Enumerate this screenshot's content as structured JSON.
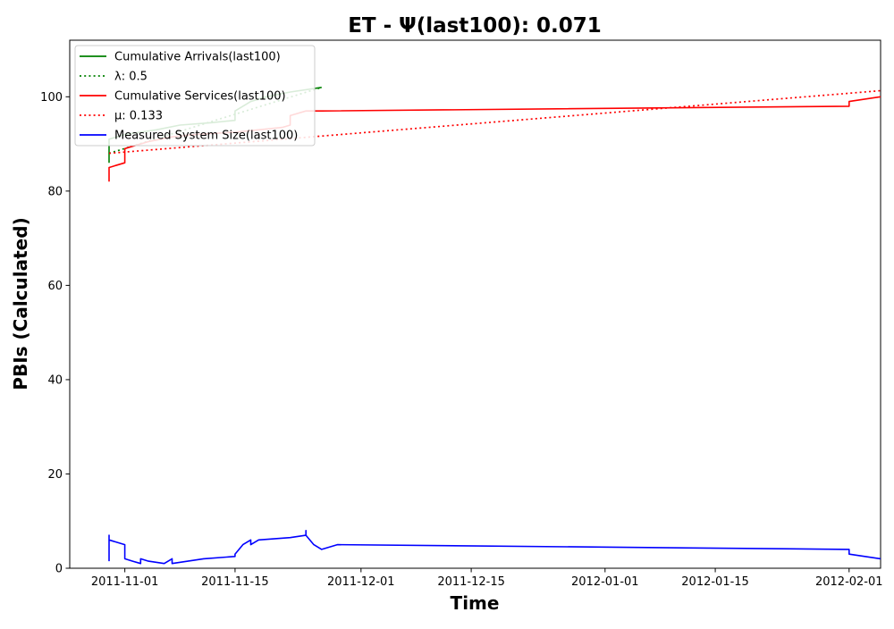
{
  "chart_data": {
    "type": "line",
    "title": "ET -  Ψ(last100): 0.071",
    "xlabel": "Time",
    "ylabel": "PBIs (Calculated)",
    "ylim": [
      0,
      112
    ],
    "yticks": [
      0,
      20,
      40,
      60,
      80,
      100
    ],
    "xlim": [
      "2011-10-25",
      "2012-02-05"
    ],
    "xticks": [
      "2011-11-01",
      "2011-11-15",
      "2011-12-01",
      "2011-12-15",
      "2012-01-01",
      "2012-01-15",
      "2012-02-01"
    ],
    "legend_position": "top-left",
    "grid": false,
    "series": [
      {
        "name": "Cumulative Arrivals(last100)",
        "style": "solid",
        "color": "#008000",
        "points": [
          [
            "2011-10-30",
            86
          ],
          [
            "2011-10-30",
            89
          ],
          [
            "2011-10-30",
            91
          ],
          [
            "2011-11-01",
            92
          ],
          [
            "2011-11-05",
            93
          ],
          [
            "2011-11-08",
            94
          ],
          [
            "2011-11-12",
            94.5
          ],
          [
            "2011-11-15",
            95
          ],
          [
            "2011-11-15",
            97
          ],
          [
            "2011-11-16",
            98
          ],
          [
            "2011-11-17",
            99
          ],
          [
            "2011-11-19",
            100
          ],
          [
            "2011-11-22",
            101
          ],
          [
            "2011-11-26",
            102
          ]
        ]
      },
      {
        "name": "λ: 0.5",
        "style": "dotted",
        "color": "#008000",
        "points": [
          [
            "2011-10-30",
            88
          ],
          [
            "2011-11-26",
            102
          ]
        ]
      },
      {
        "name": "Cumulative Services(last100)",
        "style": "solid",
        "color": "#ff0000",
        "points": [
          [
            "2011-10-30",
            82
          ],
          [
            "2011-10-30",
            85
          ],
          [
            "2011-10-31",
            85.5
          ],
          [
            "2011-11-01",
            86
          ],
          [
            "2011-11-01",
            89
          ],
          [
            "2011-11-02",
            89.5
          ],
          [
            "2011-11-04",
            90.5
          ],
          [
            "2011-11-07",
            91.5
          ],
          [
            "2011-11-10",
            92
          ],
          [
            "2011-11-15",
            92.5
          ],
          [
            "2011-11-18",
            93
          ],
          [
            "2011-11-21",
            93.5
          ],
          [
            "2011-11-22",
            94
          ],
          [
            "2011-11-22",
            96
          ],
          [
            "2011-11-24",
            97
          ],
          [
            "2011-11-26",
            97
          ],
          [
            "2012-02-01",
            98
          ],
          [
            "2012-02-01",
            99
          ],
          [
            "2012-02-05",
            100
          ]
        ]
      },
      {
        "name": "μ: 0.133",
        "style": "dotted",
        "color": "#ff0000",
        "points": [
          [
            "2011-10-30",
            88
          ],
          [
            "2012-02-05",
            101.3
          ]
        ]
      },
      {
        "name": "Measured System Size(last100)",
        "style": "solid",
        "color": "#0000ff",
        "points": [
          [
            "2011-10-30",
            1.5
          ],
          [
            "2011-10-30",
            7
          ],
          [
            "2011-10-30",
            6
          ],
          [
            "2011-11-01",
            5
          ],
          [
            "2011-11-01",
            2
          ],
          [
            "2011-11-02",
            1.5
          ],
          [
            "2011-11-03",
            1
          ],
          [
            "2011-11-03",
            2
          ],
          [
            "2011-11-04",
            1.5
          ],
          [
            "2011-11-06",
            1
          ],
          [
            "2011-11-07",
            2
          ],
          [
            "2011-11-07",
            1
          ],
          [
            "2011-11-09",
            1.5
          ],
          [
            "2011-11-11",
            2
          ],
          [
            "2011-11-15",
            2.5
          ],
          [
            "2011-11-15",
            3
          ],
          [
            "2011-11-16",
            5
          ],
          [
            "2011-11-17",
            6
          ],
          [
            "2011-11-17",
            5
          ],
          [
            "2011-11-18",
            6
          ],
          [
            "2011-11-22",
            6.5
          ],
          [
            "2011-11-24",
            7
          ],
          [
            "2011-11-24",
            8
          ],
          [
            "2011-11-24",
            7
          ],
          [
            "2011-11-25",
            5
          ],
          [
            "2011-11-26",
            4
          ],
          [
            "2011-11-28",
            5
          ],
          [
            "2012-02-01",
            4
          ],
          [
            "2012-02-01",
            3
          ],
          [
            "2012-02-05",
            2
          ]
        ]
      }
    ]
  }
}
